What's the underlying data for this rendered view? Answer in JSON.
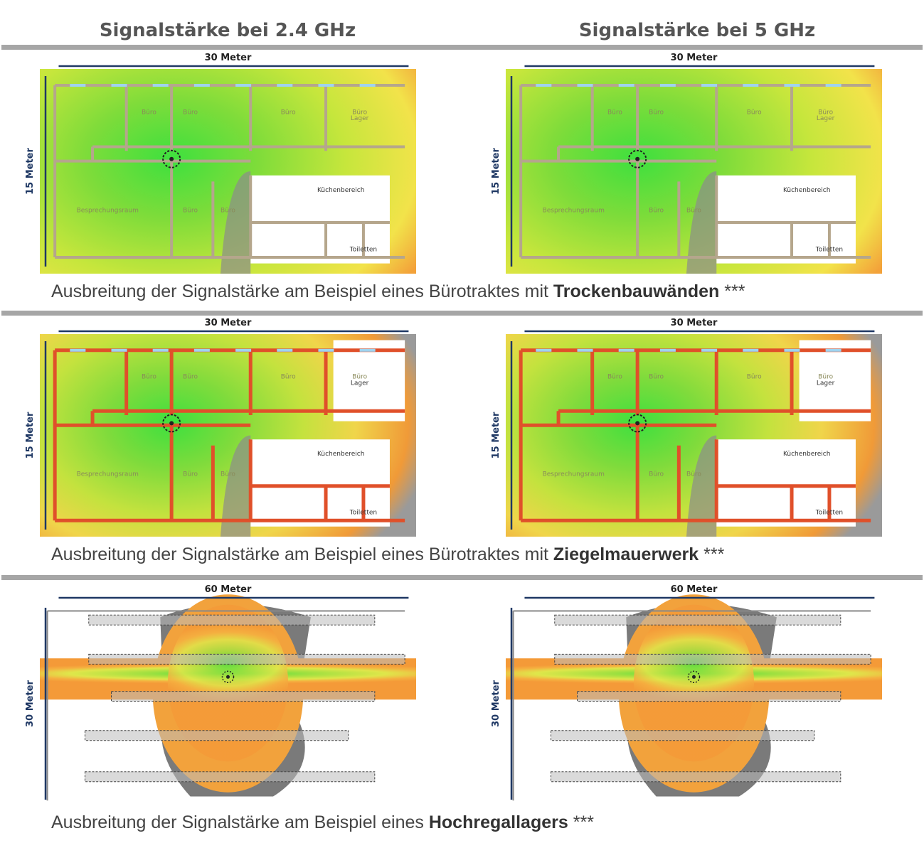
{
  "headers": [
    "Signalstärke bei 2.4 GHz",
    "Signalstärke bei 5 GHz"
  ],
  "sections": [
    {
      "caption": {
        "text": "Ausbreitung der Signalstärke am Beispiel eines Bürotraktes mit",
        "emphasis": "Trockenbauwänden",
        "suffix": "***"
      },
      "panels": [
        {
          "width_label": "30 Meter",
          "height_label": "15 Meter",
          "rooms": [
            "Büro",
            "Büro",
            "Büro",
            "Büro",
            "Lager",
            "Küchenbereich",
            "Besprechungsraum",
            "Büro",
            "Büro",
            "Toiletten"
          ]
        },
        {
          "width_label": "30 Meter",
          "height_label": "15 Meter",
          "rooms": [
            "Büro",
            "Büro",
            "Büro",
            "Büro",
            "Lager",
            "Küchenbereich",
            "Besprechungsraum",
            "Büro",
            "Büro",
            "Toiletten"
          ]
        }
      ]
    },
    {
      "caption": {
        "text": "Ausbreitung der Signalstärke am Beispiel eines Bürotraktes mit",
        "emphasis": "Ziegelmauerwerk",
        "suffix": "***"
      },
      "panels": [
        {
          "width_label": "30 Meter",
          "height_label": "15 Meter",
          "rooms": [
            "Büro",
            "Büro",
            "Büro",
            "Büro",
            "Lager",
            "Küchenbereich",
            "Besprechungsraum",
            "Büro",
            "Büro",
            "Toiletten"
          ]
        },
        {
          "width_label": "30 Meter",
          "height_label": "15 Meter",
          "rooms": [
            "Büro",
            "Büro",
            "Büro",
            "Büro",
            "Lager",
            "Küchenbereich",
            "Besprechungsraum",
            "Büro",
            "Büro",
            "Toiletten"
          ]
        }
      ]
    },
    {
      "caption": {
        "text": "Ausbreitung der Signalstärke am Beispiel eines",
        "emphasis": "Hochregallagers",
        "suffix": "***"
      },
      "panels": [
        {
          "width_label": "60 Meter",
          "height_label": "30 Meter"
        },
        {
          "width_label": "60 Meter",
          "height_label": "30 Meter"
        }
      ]
    }
  ]
}
